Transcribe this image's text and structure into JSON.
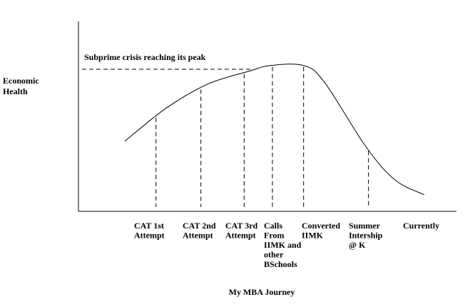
{
  "chart_data": {
    "type": "line",
    "title": "",
    "xlabel": "My MBA Journey",
    "ylabel": [
      "Economic",
      "Health"
    ],
    "ylim": [
      0,
      100
    ],
    "annotation": "Subprime crisis reaching its peak",
    "annotation_level": 77,
    "curve": [
      {
        "x": 0,
        "y": 38
      },
      {
        "x": 10,
        "y": 56
      },
      {
        "x": 20,
        "y": 69
      },
      {
        "x": 30,
        "y": 76
      },
      {
        "x": 35,
        "y": 79
      },
      {
        "x": 43,
        "y": 79
      },
      {
        "x": 48,
        "y": 70
      },
      {
        "x": 58,
        "y": 35
      },
      {
        "x": 65,
        "y": 17
      },
      {
        "x": 72,
        "y": 9
      }
    ],
    "milestones": [
      {
        "label": [
          "CAT 1st",
          "Attempt"
        ],
        "x": 7.5
      },
      {
        "label": [
          "CAT 2nd",
          "Attempt"
        ],
        "x": 18.3
      },
      {
        "label": [
          "CAT 3rd",
          "Attempt"
        ],
        "x": 28.7
      },
      {
        "label": [
          "Calls",
          "From",
          "IIMK and",
          "other",
          "BSchools"
        ],
        "x": 35.5
      },
      {
        "label": [
          "Converted",
          "IIMK"
        ],
        "x": 43.0
      },
      {
        "label": [
          "Summer",
          "Intership",
          "@ K"
        ],
        "x": 58.6
      },
      {
        "label": [
          "Currently"
        ],
        "x": 72
      }
    ],
    "colors": {
      "line": "#000000"
    }
  }
}
